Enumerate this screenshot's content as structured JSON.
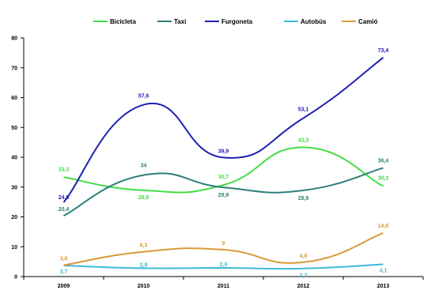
{
  "chart_data": {
    "type": "line",
    "x": [
      "2009",
      "2010",
      "2011",
      "2012",
      "2013"
    ],
    "ylim": [
      0,
      80
    ],
    "yticks": [
      "0",
      "10",
      "20",
      "30",
      "40",
      "50",
      "60",
      "70",
      "80"
    ],
    "grid": false,
    "legend_position": "top",
    "smooth": true,
    "series": [
      {
        "name": "Bicicleta",
        "color": "#44dd44",
        "values": [
          33.3,
          28.9,
          30.7,
          43.3,
          30.3
        ],
        "labels": [
          "33,3",
          "28,9",
          "30,7",
          "43,3",
          "30,3"
        ]
      },
      {
        "name": "Taxi",
        "color": "#2e7f7a",
        "values": [
          20.4,
          34,
          29.9,
          28.9,
          36.4
        ],
        "labels": [
          "20,4",
          "34",
          "29,9",
          "28,9",
          "36,4"
        ]
      },
      {
        "name": "Furgoneta",
        "color": "#1f1fb4",
        "values": [
          24.9,
          57.6,
          39.9,
          53.1,
          73.4
        ],
        "labels": [
          "24,9",
          "57,6",
          "39,9",
          "53,1",
          "73,4"
        ]
      },
      {
        "name": "Autobús",
        "color": "#3fb8d8",
        "values": [
          3.7,
          2.8,
          2.9,
          2.7,
          4.1
        ],
        "labels": [
          "3,7",
          "2,8",
          "2,9",
          "2,7",
          "4,1"
        ]
      },
      {
        "name": "Camió",
        "color": "#d99a3a",
        "values": [
          3.8,
          8.3,
          9,
          4.8,
          14.6
        ],
        "labels": [
          "3,8",
          "8,3",
          "9",
          "4,8",
          "14,6"
        ]
      }
    ]
  }
}
